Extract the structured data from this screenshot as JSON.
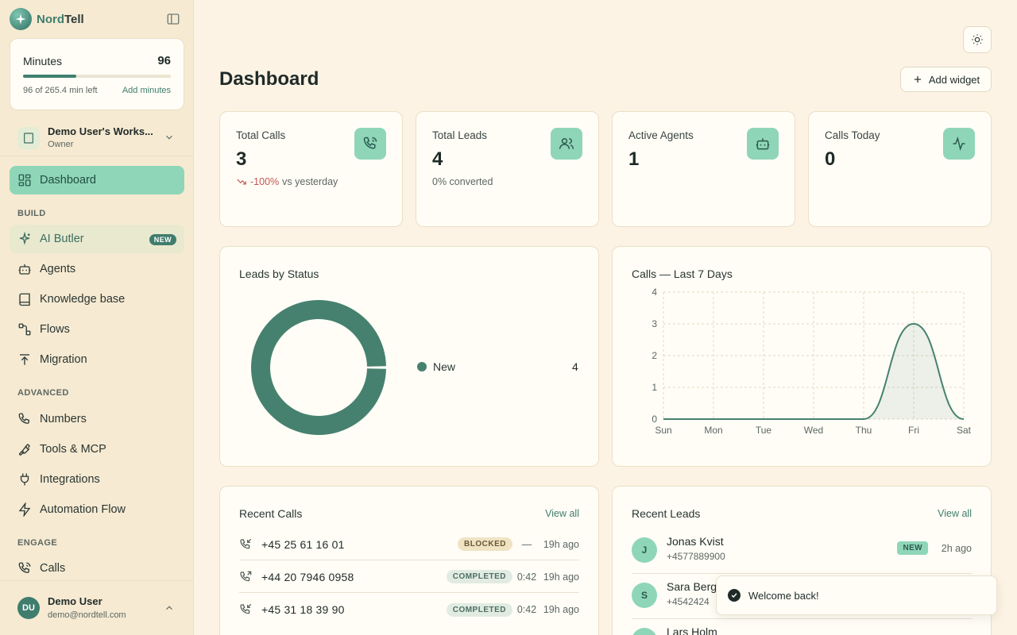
{
  "brand": {
    "name_a": "Nord",
    "name_b": "Tell"
  },
  "minutes": {
    "title": "Minutes",
    "value": "96",
    "progress_fraction": 0.362,
    "left_text": "96 of 265.4 min left",
    "add_label": "Add minutes"
  },
  "workspace": {
    "name": "Demo User's Works...",
    "role": "Owner"
  },
  "nav": {
    "dashboard": "Dashboard",
    "build_label": "BUILD",
    "ai_butler": "AI Butler",
    "new_badge": "NEW",
    "agents": "Agents",
    "knowledge_base": "Knowledge base",
    "flows": "Flows",
    "migration": "Migration",
    "advanced_label": "ADVANCED",
    "numbers": "Numbers",
    "tools_mcp": "Tools & MCP",
    "integrations": "Integrations",
    "automation_flow": "Automation Flow",
    "engage_label": "ENGAGE",
    "calls": "Calls"
  },
  "user": {
    "initials": "DU",
    "name": "Demo User",
    "email": "demo@nordtell.com"
  },
  "header": {
    "title": "Dashboard",
    "add_widget": "Add widget"
  },
  "stats": [
    {
      "label": "Total Calls",
      "value": "3",
      "delta": "-100%",
      "delta_suffix": "vs yesterday",
      "icon": "phone-icon"
    },
    {
      "label": "Total Leads",
      "value": "4",
      "sub": "0% converted",
      "icon": "users-icon"
    },
    {
      "label": "Active Agents",
      "value": "1",
      "icon": "bot-icon"
    },
    {
      "label": "Calls Today",
      "value": "0",
      "icon": "activity-icon"
    }
  ],
  "leads_by_status": {
    "title": "Leads by Status"
  },
  "calls_chart": {
    "title": "Calls — Last 7 Days"
  },
  "chart_data": [
    {
      "type": "pie",
      "title": "Leads by Status",
      "categories": [
        "New"
      ],
      "values": [
        4
      ],
      "colors": [
        "#46816f"
      ],
      "donut": true
    },
    {
      "type": "area",
      "title": "Calls — Last 7 Days",
      "x": [
        "Sun",
        "Mon",
        "Tue",
        "Wed",
        "Thu",
        "Fri",
        "Sat"
      ],
      "values": [
        0,
        0,
        0,
        0,
        0,
        3,
        0
      ],
      "ylim": [
        0,
        4
      ],
      "yticks": [
        0,
        1,
        2,
        3,
        4
      ],
      "grid": true,
      "color": "#46816f"
    }
  ],
  "recent_calls": {
    "title": "Recent Calls",
    "view_all": "View all",
    "rows": [
      {
        "phone": "+45 25 61 16 01",
        "status": "BLOCKED",
        "duration": "—",
        "ago": "19h ago"
      },
      {
        "phone": "+44 20 7946 0958",
        "status": "COMPLETED",
        "duration": "0:42",
        "ago": "19h ago"
      },
      {
        "phone": "+45 31 18 39 90",
        "status": "COMPLETED",
        "duration": "0:42",
        "ago": "19h ago"
      }
    ]
  },
  "recent_leads": {
    "title": "Recent Leads",
    "view_all": "View all",
    "rows": [
      {
        "initial": "J",
        "name": "Jonas Kvist",
        "phone": "+4577889900",
        "badge": "NEW",
        "ago": "2h ago"
      },
      {
        "initial": "S",
        "name": "Sara Berg",
        "phone": "+4542424",
        "badge": "",
        "ago": ""
      },
      {
        "initial": "L",
        "name": "Lars Holm",
        "phone": "",
        "badge": "",
        "ago": ""
      }
    ]
  },
  "toast": {
    "message": "Welcome back!"
  }
}
